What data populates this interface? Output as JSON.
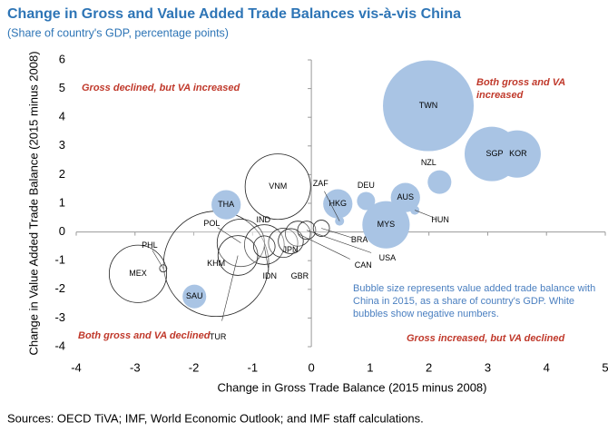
{
  "chart_data": {
    "type": "bubble",
    "title": "Change in Gross and Value Added Trade Balances vis-à-vis China",
    "subtitle": "(Share of country's GDP, percentage points)",
    "xlabel": "Change in Gross Trade Balance (2015 minus 2008)",
    "ylabel": "Change in Value Added Trade Balance (2015 minus 2008)",
    "xlim": [
      -4,
      5
    ],
    "ylim": [
      -4,
      6
    ],
    "xticks": [
      -4,
      -3,
      -2,
      -1,
      0,
      1,
      2,
      3,
      4,
      5
    ],
    "yticks": [
      -4,
      -3,
      -2,
      -1,
      0,
      1,
      2,
      3,
      4,
      5,
      6
    ],
    "positive_color": "#a9c4e4",
    "negative_color": "#ffffff",
    "labels": [
      "KHM",
      "TWN",
      "VNM",
      "MEX",
      "SGP",
      "KOR",
      "MYS",
      "POL",
      "IND",
      "TUR",
      "THA",
      "AUS",
      "HKG",
      "JPN",
      "CAN",
      "GBR",
      "NZL",
      "SAU",
      "IDN",
      "DEU",
      "USA",
      "BRA",
      "HUN",
      "ZAF",
      "PHL"
    ],
    "x": [
      -1.62,
      1.99,
      -0.57,
      -2.95,
      3.07,
      3.5,
      1.27,
      -1.2,
      -0.8,
      -1.25,
      -1.45,
      1.6,
      0.45,
      -0.48,
      -0.23,
      -0.35,
      2.18,
      -1.99,
      -0.8,
      0.93,
      -0.08,
      0.17,
      1.76,
      0.48,
      -2.52
    ],
    "y": [
      -1.11,
      4.4,
      1.58,
      -1.46,
      2.72,
      2.72,
      0.25,
      -0.38,
      -0.44,
      -0.82,
      0.95,
      1.2,
      0.98,
      -0.38,
      -0.06,
      -0.32,
      1.74,
      -2.25,
      -0.51,
      1.08,
      0.06,
      0.13,
      0.76,
      0.38,
      -1.27
    ],
    "sizes": [
      -33.6,
      25,
      -13,
      -10,
      9,
      6.8,
      6.8,
      -6.8,
      -4.8,
      -4.8,
      2.6,
      2.6,
      2.6,
      -2.6,
      -1.9,
      -1.9,
      1.7,
      1.7,
      -1.4,
      1,
      -1,
      -0.8,
      0.25,
      0.25,
      -0.16
    ],
    "quadrant_labels": [
      [
        "Gross declined, but VA increased"
      ],
      [
        "Both gross and VA",
        "increased"
      ],
      [
        "Both gross and VA declined"
      ],
      [
        "Gross increased, but VA declined"
      ]
    ],
    "note": [
      "Bubble size represents value added trade balance with",
      "China in 2015, as a share of country's GDP. White",
      "bubbles show negative numbers."
    ],
    "source": "Sources: OECD TiVA; IMF, World Economic Outlook; and IMF staff calculations."
  }
}
